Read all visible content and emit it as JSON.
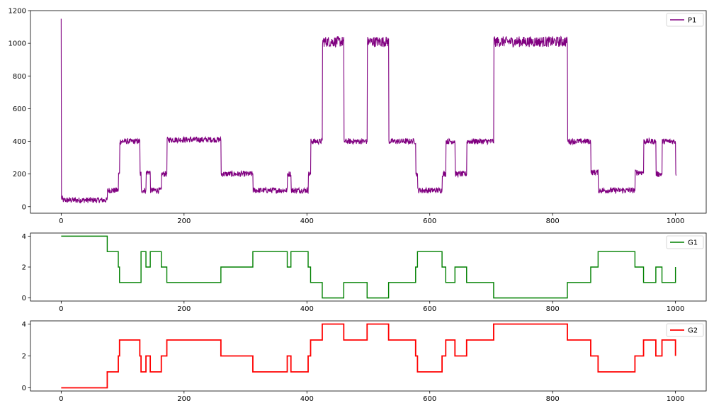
{
  "chart_data": [
    {
      "type": "line",
      "title": "",
      "xlabel": "",
      "ylabel": "",
      "xlim": [
        -50,
        1050
      ],
      "ylim": [
        -40,
        1200
      ],
      "xticks": [
        0,
        200,
        400,
        600,
        800,
        1000
      ],
      "yticks": [
        0,
        200,
        400,
        600,
        800,
        1000,
        1200
      ],
      "xtick_labels": [
        "0",
        "200",
        "400",
        "600",
        "800",
        "1000"
      ],
      "ytick_labels": [
        "0",
        "200",
        "400",
        "600",
        "800",
        "1000",
        "1200"
      ],
      "grid": false,
      "legend_position": "top-right",
      "noise": 25,
      "series": [
        {
          "name": "P1",
          "color": "#800080",
          "start_value": 1150,
          "segments": [
            [
              0,
              2,
              50
            ],
            [
              2,
              75,
              40
            ],
            [
              75,
              93,
              100
            ],
            [
              93,
              95,
              200
            ],
            [
              95,
              128,
              400
            ],
            [
              128,
              130,
              200
            ],
            [
              130,
              138,
              100
            ],
            [
              138,
              145,
              210
            ],
            [
              145,
              163,
              100
            ],
            [
              163,
              172,
              200
            ],
            [
              172,
              260,
              410
            ],
            [
              260,
              312,
              200
            ],
            [
              312,
              368,
              100
            ],
            [
              368,
              374,
              200
            ],
            [
              374,
              402,
              100
            ],
            [
              402,
              406,
              200
            ],
            [
              406,
              425,
              400
            ],
            [
              425,
              460,
              1010
            ],
            [
              460,
              498,
              400
            ],
            [
              498,
              533,
              1010
            ],
            [
              533,
              577,
              400
            ],
            [
              577,
              580,
              200
            ],
            [
              580,
              620,
              100
            ],
            [
              620,
              626,
              200
            ],
            [
              626,
              641,
              400
            ],
            [
              641,
              660,
              200
            ],
            [
              660,
              704,
              400
            ],
            [
              704,
              824,
              1010
            ],
            [
              824,
              862,
              400
            ],
            [
              862,
              874,
              210
            ],
            [
              874,
              934,
              100
            ],
            [
              934,
              948,
              210
            ],
            [
              948,
              968,
              400
            ],
            [
              968,
              978,
              200
            ],
            [
              978,
              1000,
              400
            ],
            [
              1000,
              1001,
              200
            ]
          ]
        }
      ]
    },
    {
      "type": "line",
      "title": "",
      "xlabel": "",
      "ylabel": "",
      "xlim": [
        -50,
        1050
      ],
      "ylim": [
        -0.2,
        4.2
      ],
      "xticks": [
        0,
        200,
        400,
        600,
        800,
        1000
      ],
      "yticks": [
        0,
        2,
        4
      ],
      "xtick_labels": [
        "0",
        "200",
        "400",
        "600",
        "800",
        "1000"
      ],
      "ytick_labels": [
        "0",
        "2",
        "4"
      ],
      "grid": false,
      "legend_position": "top-right",
      "series": [
        {
          "name": "G1",
          "color": "#008000",
          "step_x": [
            0,
            75,
            93,
            95,
            130,
            138,
            145,
            163,
            172,
            260,
            312,
            368,
            374,
            402,
            406,
            425,
            460,
            498,
            533,
            577,
            580,
            620,
            626,
            641,
            660,
            704,
            824,
            862,
            874,
            934,
            948,
            968,
            978,
            1000
          ],
          "step_y": [
            4,
            3,
            2,
            1,
            3,
            2,
            3,
            2,
            1,
            2,
            3,
            2,
            3,
            2,
            1,
            0,
            1,
            0,
            1,
            2,
            3,
            2,
            1,
            2,
            1,
            0,
            1,
            2,
            3,
            2,
            1,
            2,
            1,
            2
          ]
        }
      ]
    },
    {
      "type": "line",
      "title": "",
      "xlabel": "",
      "ylabel": "",
      "xlim": [
        -50,
        1050
      ],
      "ylim": [
        -0.2,
        4.2
      ],
      "xticks": [
        0,
        200,
        400,
        600,
        800,
        1000
      ],
      "yticks": [
        0,
        2,
        4
      ],
      "xtick_labels": [
        "0",
        "200",
        "400",
        "600",
        "800",
        "1000"
      ],
      "ytick_labels": [
        "0",
        "2",
        "4"
      ],
      "grid": false,
      "legend_position": "top-right",
      "series": [
        {
          "name": "G2",
          "color": "#ff0000",
          "step_x": [
            0,
            75,
            93,
            95,
            128,
            130,
            138,
            145,
            163,
            172,
            260,
            312,
            368,
            374,
            402,
            406,
            425,
            460,
            498,
            533,
            577,
            580,
            620,
            626,
            641,
            660,
            704,
            824,
            862,
            874,
            934,
            948,
            968,
            978,
            1000
          ],
          "step_y": [
            0,
            1,
            2,
            3,
            2,
            1,
            2,
            1,
            2,
            3,
            2,
            1,
            2,
            1,
            2,
            3,
            4,
            3,
            4,
            3,
            2,
            1,
            2,
            3,
            2,
            3,
            4,
            3,
            2,
            1,
            2,
            3,
            2,
            3,
            2
          ]
        }
      ]
    }
  ]
}
